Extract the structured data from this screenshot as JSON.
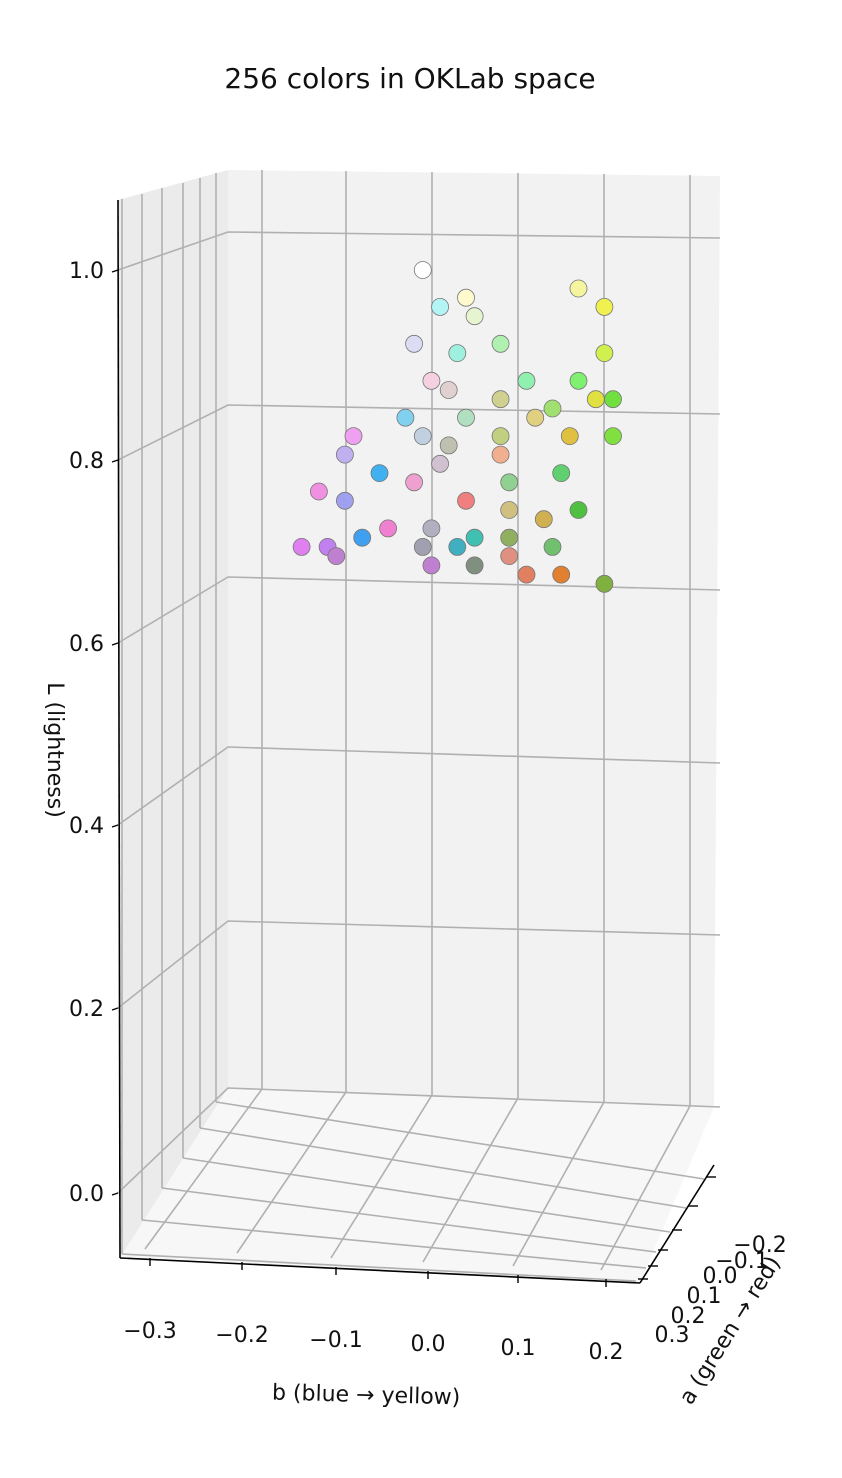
{
  "chart_data": {
    "type": "scatter3d",
    "title": "256 colors in OKLab space",
    "xlabel": "a  (green → red)",
    "ylabel": "b  (blue → yellow)",
    "zlabel": "L  (lightness)",
    "a_ticks": [
      "−0.2",
      "−0.1",
      "0.0",
      "0.1",
      "0.2",
      "0.3"
    ],
    "b_ticks": [
      "−0.3",
      "−0.2",
      "−0.1",
      "0.0",
      "0.1",
      "0.2"
    ],
    "L_ticks": [
      "0.0",
      "0.2",
      "0.4",
      "0.6",
      "0.8",
      "1.0"
    ],
    "a_range": [
      -0.25,
      0.35
    ],
    "b_range": [
      -0.35,
      0.25
    ],
    "L_range": [
      -0.05,
      1.08
    ],
    "grid": true,
    "point_count": 256,
    "points": [
      {
        "b": 0.0,
        "L": 1.0,
        "color": "#ffffff"
      },
      {
        "b": 0.05,
        "L": 0.97,
        "color": "#fffacd"
      },
      {
        "b": 0.02,
        "L": 0.96,
        "color": "#b3f5f5"
      },
      {
        "b": 0.06,
        "L": 0.95,
        "color": "#e6f5d0"
      },
      {
        "b": 0.18,
        "L": 0.98,
        "color": "#f5f5a0"
      },
      {
        "b": 0.21,
        "L": 0.96,
        "color": "#f0f050"
      },
      {
        "b": -0.01,
        "L": 0.92,
        "color": "#dcdcf5"
      },
      {
        "b": 0.04,
        "L": 0.91,
        "color": "#a0f0e0"
      },
      {
        "b": 0.09,
        "L": 0.92,
        "color": "#b0f0b0"
      },
      {
        "b": 0.21,
        "L": 0.91,
        "color": "#d0f050"
      },
      {
        "b": 0.12,
        "L": 0.88,
        "color": "#90f0b0"
      },
      {
        "b": 0.18,
        "L": 0.88,
        "color": "#80f070"
      },
      {
        "b": 0.2,
        "L": 0.86,
        "color": "#e0e040"
      },
      {
        "b": 0.01,
        "L": 0.88,
        "color": "#f5d0e0"
      },
      {
        "b": 0.03,
        "L": 0.87,
        "color": "#e0d0d0"
      },
      {
        "b": 0.09,
        "L": 0.86,
        "color": "#d0d090"
      },
      {
        "b": 0.15,
        "L": 0.85,
        "color": "#a0e070"
      },
      {
        "b": 0.22,
        "L": 0.86,
        "color": "#70e040"
      },
      {
        "b": -0.02,
        "L": 0.84,
        "color": "#80d0f0"
      },
      {
        "b": 0.05,
        "L": 0.84,
        "color": "#b0e0c0"
      },
      {
        "b": 0.13,
        "L": 0.84,
        "color": "#e0d080"
      },
      {
        "b": 0.22,
        "L": 0.82,
        "color": "#80e040"
      },
      {
        "b": -0.08,
        "L": 0.82,
        "color": "#f0a0f0"
      },
      {
        "b": 0.0,
        "L": 0.82,
        "color": "#c0d0e0"
      },
      {
        "b": 0.03,
        "L": 0.81,
        "color": "#c0c0b0"
      },
      {
        "b": 0.09,
        "L": 0.82,
        "color": "#c0d080"
      },
      {
        "b": 0.17,
        "L": 0.82,
        "color": "#e0c040"
      },
      {
        "b": -0.09,
        "L": 0.8,
        "color": "#c0b0f0"
      },
      {
        "b": 0.02,
        "L": 0.79,
        "color": "#d0c0d0"
      },
      {
        "b": 0.09,
        "L": 0.8,
        "color": "#f0b090"
      },
      {
        "b": 0.16,
        "L": 0.78,
        "color": "#60d070"
      },
      {
        "b": -0.05,
        "L": 0.78,
        "color": "#40b0f0"
      },
      {
        "b": -0.01,
        "L": 0.77,
        "color": "#f0a0d0"
      },
      {
        "b": 0.1,
        "L": 0.77,
        "color": "#90d090"
      },
      {
        "b": -0.12,
        "L": 0.76,
        "color": "#f090e0"
      },
      {
        "b": -0.09,
        "L": 0.75,
        "color": "#a0a0f0"
      },
      {
        "b": 0.05,
        "L": 0.75,
        "color": "#f08080"
      },
      {
        "b": 0.1,
        "L": 0.74,
        "color": "#d0c080"
      },
      {
        "b": 0.14,
        "L": 0.73,
        "color": "#d0b050"
      },
      {
        "b": 0.18,
        "L": 0.74,
        "color": "#50c040"
      },
      {
        "b": -0.04,
        "L": 0.72,
        "color": "#f080d0"
      },
      {
        "b": 0.01,
        "L": 0.72,
        "color": "#b0b0c0"
      },
      {
        "b": 0.06,
        "L": 0.71,
        "color": "#40c0b0"
      },
      {
        "b": 0.1,
        "L": 0.71,
        "color": "#90b060"
      },
      {
        "b": -0.07,
        "L": 0.71,
        "color": "#40a0f0"
      },
      {
        "b": 0.15,
        "L": 0.7,
        "color": "#70c070"
      },
      {
        "b": -0.14,
        "L": 0.7,
        "color": "#e080f0"
      },
      {
        "b": -0.11,
        "L": 0.7,
        "color": "#c080f0"
      },
      {
        "b": 0.0,
        "L": 0.7,
        "color": "#a0a0b0"
      },
      {
        "b": 0.04,
        "L": 0.7,
        "color": "#40b0c0"
      },
      {
        "b": 0.1,
        "L": 0.69,
        "color": "#e09080"
      },
      {
        "b": -0.1,
        "L": 0.69,
        "color": "#c080d0"
      },
      {
        "b": 0.01,
        "L": 0.68,
        "color": "#c080d0"
      },
      {
        "b": 0.06,
        "L": 0.68,
        "color": "#809080"
      },
      {
        "b": 0.12,
        "L": 0.67,
        "color": "#e08060"
      },
      {
        "b": 0.16,
        "L": 0.67,
        "color": "#e08030"
      },
      {
        "b": 0.21,
        "L": 0.66,
        "color": "#80b040"
      }
    ]
  }
}
